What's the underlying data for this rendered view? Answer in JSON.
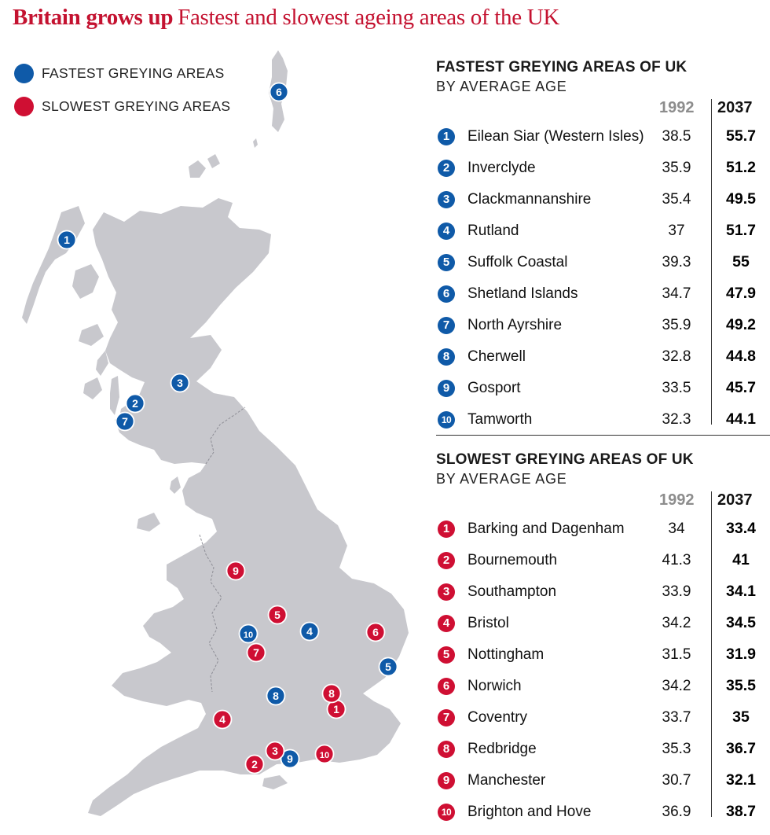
{
  "title": {
    "bold": "Britain grows up",
    "rest": "Fastest and slowest ageing areas of the UK"
  },
  "colors": {
    "fastest": "#0f5aa8",
    "slowest": "#cf0f33",
    "land": "#c8c8cd",
    "title": "#c41230"
  },
  "legend": [
    {
      "label": "FASTEST GREYING AREAS",
      "color": "#0f5aa8"
    },
    {
      "label": "SLOWEST GREYING AREAS",
      "color": "#cf0f33"
    }
  ],
  "fastest": {
    "heading": "FASTEST GREYING AREAS OF UK",
    "subheading": "BY AVERAGE AGE",
    "col1": "1992",
    "col2": "2037",
    "rows": [
      {
        "rank": "1",
        "name": "Eilean Siar (Western Isles)",
        "v1992": "38.5",
        "v2037": "55.7"
      },
      {
        "rank": "2",
        "name": "Inverclyde",
        "v1992": "35.9",
        "v2037": "51.2"
      },
      {
        "rank": "3",
        "name": "Clackmannanshire",
        "v1992": "35.4",
        "v2037": "49.5"
      },
      {
        "rank": "4",
        "name": "Rutland",
        "v1992": "37",
        "v2037": "51.7"
      },
      {
        "rank": "5",
        "name": "Suffolk Coastal",
        "v1992": "39.3",
        "v2037": "55"
      },
      {
        "rank": "6",
        "name": "Shetland Islands",
        "v1992": "34.7",
        "v2037": "47.9"
      },
      {
        "rank": "7",
        "name": "North Ayrshire",
        "v1992": "35.9",
        "v2037": "49.2"
      },
      {
        "rank": "8",
        "name": "Cherwell",
        "v1992": "32.8",
        "v2037": "44.8"
      },
      {
        "rank": "9",
        "name": "Gosport",
        "v1992": "33.5",
        "v2037": "45.7"
      },
      {
        "rank": "10",
        "name": "Tamworth",
        "v1992": "32.3",
        "v2037": "44.1"
      }
    ]
  },
  "slowest": {
    "heading": "SLOWEST GREYING AREAS OF UK",
    "subheading": "BY AVERAGE AGE",
    "col1": "1992",
    "col2": "2037",
    "rows": [
      {
        "rank": "1",
        "name": "Barking and Dagenham",
        "v1992": "34",
        "v2037": "33.4"
      },
      {
        "rank": "2",
        "name": "Bournemouth",
        "v1992": "41.3",
        "v2037": "41"
      },
      {
        "rank": "3",
        "name": "Southampton",
        "v1992": "33.9",
        "v2037": "34.1"
      },
      {
        "rank": "4",
        "name": "Bristol",
        "v1992": "34.2",
        "v2037": "34.5"
      },
      {
        "rank": "5",
        "name": "Nottingham",
        "v1992": "31.5",
        "v2037": "31.9"
      },
      {
        "rank": "6",
        "name": "Norwich",
        "v1992": "34.2",
        "v2037": "35.5"
      },
      {
        "rank": "7",
        "name": "Coventry",
        "v1992": "33.7",
        "v2037": "35"
      },
      {
        "rank": "8",
        "name": "Redbridge",
        "v1992": "35.3",
        "v2037": "36.7"
      },
      {
        "rank": "9",
        "name": "Manchester",
        "v1992": "30.7",
        "v2037": "32.1"
      },
      {
        "rank": "10",
        "name": "Brighton and Hove",
        "v1992": "36.9",
        "v2037": "38.7"
      }
    ]
  },
  "map_markers": [
    {
      "group": "fastest",
      "label": "1",
      "place": "Eilean Siar"
    },
    {
      "group": "fastest",
      "label": "2",
      "place": "Inverclyde"
    },
    {
      "group": "fastest",
      "label": "3",
      "place": "Clackmannanshire"
    },
    {
      "group": "fastest",
      "label": "4",
      "place": "Rutland"
    },
    {
      "group": "fastest",
      "label": "5",
      "place": "Suffolk Coastal"
    },
    {
      "group": "fastest",
      "label": "6",
      "place": "Shetland Islands"
    },
    {
      "group": "fastest",
      "label": "7",
      "place": "North Ayrshire"
    },
    {
      "group": "fastest",
      "label": "8",
      "place": "Cherwell"
    },
    {
      "group": "fastest",
      "label": "9",
      "place": "Gosport"
    },
    {
      "group": "fastest",
      "label": "10",
      "place": "Tamworth"
    },
    {
      "group": "slowest",
      "label": "1",
      "place": "Barking and Dagenham"
    },
    {
      "group": "slowest",
      "label": "2",
      "place": "Bournemouth"
    },
    {
      "group": "slowest",
      "label": "3",
      "place": "Southampton"
    },
    {
      "group": "slowest",
      "label": "4",
      "place": "Bristol"
    },
    {
      "group": "slowest",
      "label": "5",
      "place": "Nottingham"
    },
    {
      "group": "slowest",
      "label": "6",
      "place": "Norwich"
    },
    {
      "group": "slowest",
      "label": "7",
      "place": "Coventry"
    },
    {
      "group": "slowest",
      "label": "8",
      "place": "Redbridge"
    },
    {
      "group": "slowest",
      "label": "9",
      "place": "Manchester"
    },
    {
      "group": "slowest",
      "label": "10",
      "place": "Brighton and Hove"
    }
  ]
}
